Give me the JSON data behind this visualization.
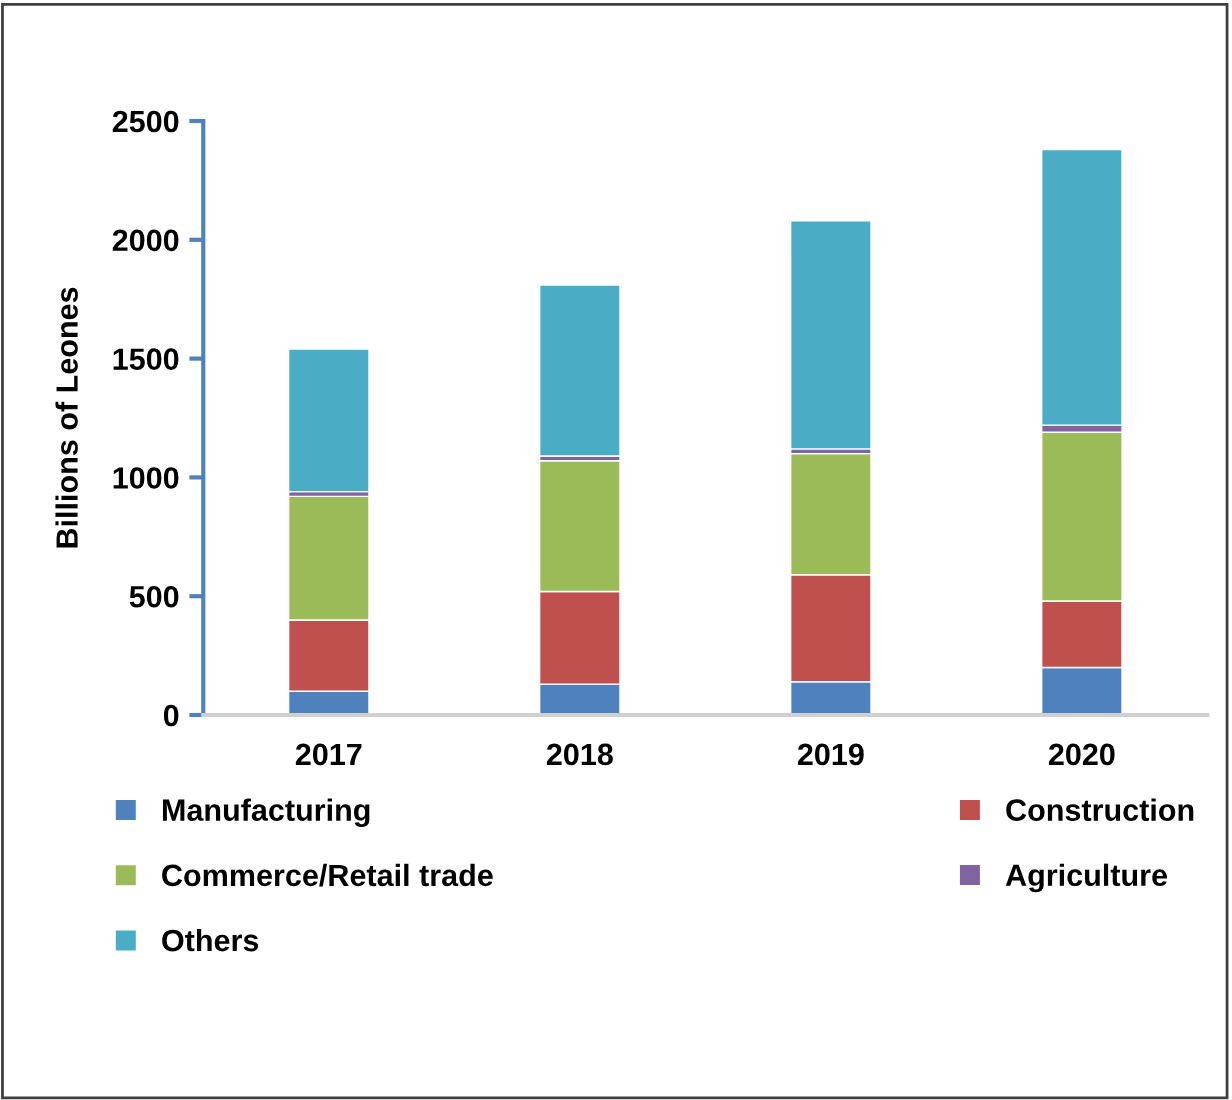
{
  "chart_data": {
    "type": "bar",
    "stacked": true,
    "ylabel": "Billions of Leones",
    "categories": [
      "2017",
      "2018",
      "2019",
      "2020"
    ],
    "series": [
      {
        "name": "Manufacturing",
        "color": "#4f81bd",
        "values": [
          100,
          130,
          140,
          200
        ]
      },
      {
        "name": "Construction",
        "color": "#c0504d",
        "values": [
          300,
          390,
          450,
          280
        ]
      },
      {
        "name": "Commerce/Retail trade",
        "color": "#9bbb59",
        "values": [
          520,
          550,
          510,
          710
        ]
      },
      {
        "name": "Agriculture",
        "color": "#8064a2",
        "values": [
          20,
          20,
          20,
          30
        ]
      },
      {
        "name": "Others",
        "color": "#4bacc6",
        "values": [
          600,
          720,
          960,
          1160
        ]
      }
    ],
    "ylim": [
      0,
      2500
    ],
    "yticks": [
      0,
      500,
      1000,
      1500,
      2000,
      2500
    ],
    "grid": false,
    "legend": "bottom"
  }
}
